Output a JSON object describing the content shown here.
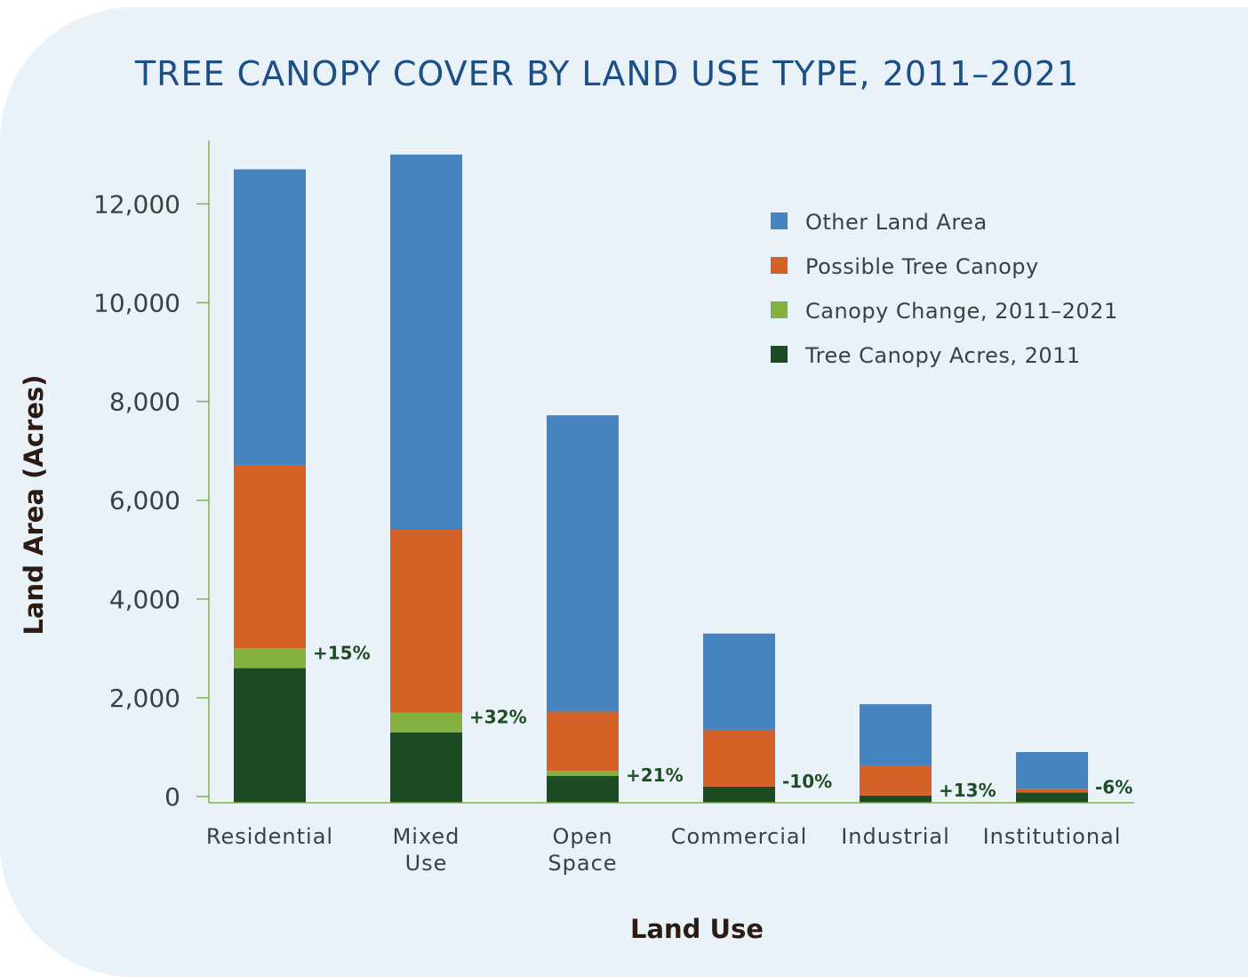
{
  "chart_data": {
    "type": "bar",
    "stacked": true,
    "title": "TREE CANOPY COVER BY LAND USE TYPE, 2011–2021",
    "xlabel": "Land Use",
    "ylabel": "Land Area (Acres)",
    "ylim": [
      0,
      13500
    ],
    "yticks": [
      0,
      2000,
      4000,
      6000,
      8000,
      10000,
      12000
    ],
    "ytick_labels": [
      "0",
      "2,000",
      "4,000",
      "6,000",
      "8,000",
      "10,000",
      "12,000"
    ],
    "categories": [
      [
        "Residential"
      ],
      [
        "Mixed",
        "Use"
      ],
      [
        "Open",
        "Space"
      ],
      [
        "Commercial"
      ],
      [
        "Industrial"
      ],
      [
        "Institutional"
      ]
    ],
    "series": [
      {
        "name": "Tree Canopy Acres, 2011",
        "color": "#1d4b24",
        "values": [
          2600,
          1300,
          420,
          200,
          20,
          80
        ]
      },
      {
        "name": "Canopy Change, 2011–2021",
        "color": "#83b141",
        "values": [
          400,
          400,
          100,
          0,
          0,
          0
        ]
      },
      {
        "name": "Possible Tree Canopy",
        "color": "#d46128",
        "values": [
          3700,
          3700,
          1200,
          1150,
          600,
          80
        ]
      },
      {
        "name": "Other Land Area",
        "color": "#4584be",
        "values": [
          6000,
          7600,
          6000,
          1950,
          1250,
          740
        ]
      }
    ],
    "change_labels": [
      "+15%",
      "+32%",
      "+21%",
      "-10%",
      "+13%",
      "-6%"
    ],
    "legend": {
      "placement": "top-right",
      "order": [
        "Other Land Area",
        "Possible Tree Canopy",
        "Canopy Change, 2011–2021",
        "Tree Canopy Acres, 2011"
      ]
    },
    "grid": false,
    "axis_color": "#7fb547"
  }
}
